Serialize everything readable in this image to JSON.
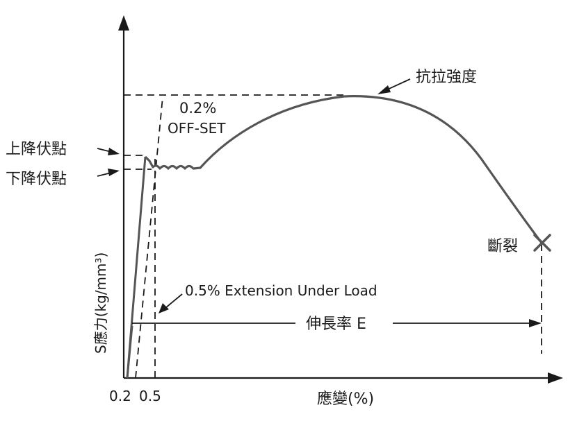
{
  "diagram": {
    "labels": {
      "tensile_strength": "抗拉強度",
      "offset_pct": "0.2%",
      "offset": "OFF-SET",
      "upper_yield": "上降伏點",
      "lower_yield": "下降伏點",
      "fracture": "斷裂",
      "extension_under_load": "0.5% Extension Under Load",
      "elongation": "伸長率 E",
      "y_axis": "S應力(kg/mm³)",
      "x_axis": "應變(%)",
      "x_tick_1": "0.2",
      "x_tick_2": "0.5"
    },
    "colors": {
      "curve": "#555555",
      "ink": "#1a1a1a"
    }
  }
}
